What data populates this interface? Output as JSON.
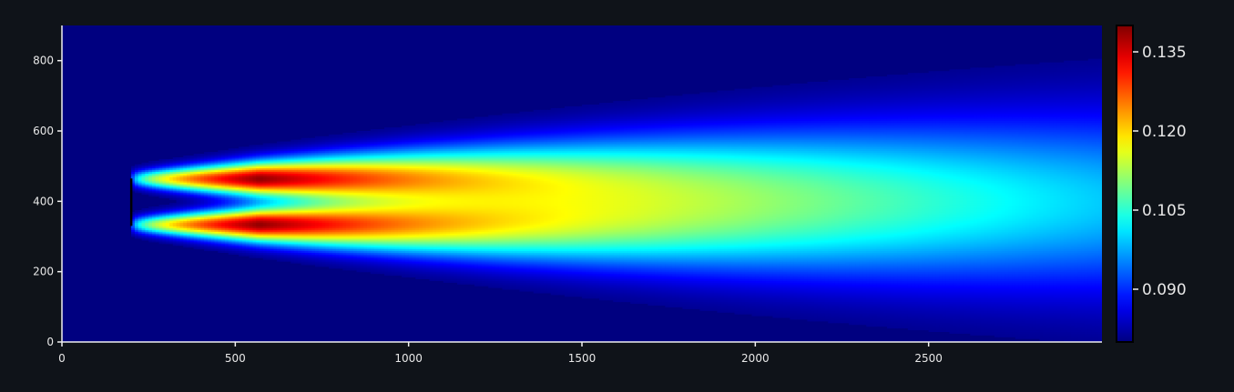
{
  "chart_data": {
    "type": "heatmap",
    "title": "",
    "xlabel": "",
    "ylabel": "",
    "xlim": [
      0,
      3000
    ],
    "ylim": [
      0,
      900
    ],
    "x_ticks": [
      0,
      500,
      1000,
      1500,
      2000,
      2500
    ],
    "x_tick_labels": [
      "0",
      "500",
      "1000",
      "1500",
      "2000",
      "2500"
    ],
    "y_ticks": [
      0,
      200,
      400,
      600,
      800
    ],
    "y_tick_labels": [
      "0",
      "200",
      "400",
      "600",
      "800"
    ],
    "colorbar": {
      "colormap": "jet",
      "range": [
        0.08,
        0.14
      ],
      "ticks": [
        0.09,
        0.105,
        0.12,
        0.135
      ],
      "tick_labels": [
        "0.090",
        "0.105",
        "0.120",
        "0.135"
      ]
    },
    "source": {
      "x": 200,
      "y_range": [
        330,
        465
      ]
    },
    "plumes": [
      {
        "center_y": 465,
        "peak_x": 570,
        "peak_value": 0.139
      },
      {
        "center_y": 335,
        "peak_x": 570,
        "peak_value": 0.139
      }
    ],
    "background_value": 0.08,
    "grid": false
  },
  "colors": {
    "page_background": "#0f1319",
    "axis": "#f0f0f0",
    "tick_label": "#e8e8e8",
    "source_line": "#000000"
  }
}
